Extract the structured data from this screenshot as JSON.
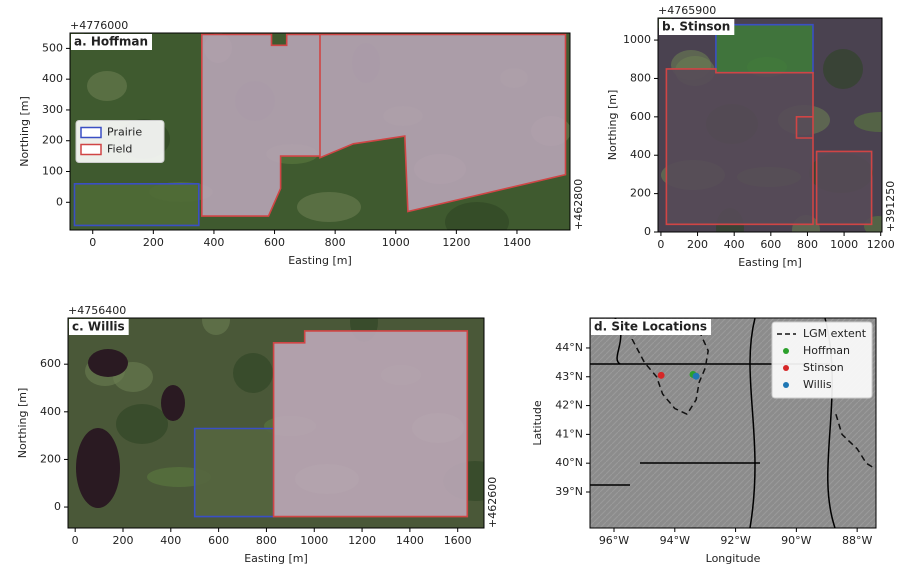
{
  "chart_data": [
    {
      "type": "map",
      "title": "a. Hoffman",
      "x_label": "Easting [m]",
      "y_label": "Northing [m]",
      "x_offset_label": "+462800",
      "y_offset_label": "+4776000",
      "xlim": [
        -75,
        1575
      ],
      "ylim": [
        -90,
        550
      ],
      "xticks": [
        0,
        200,
        400,
        600,
        800,
        1000,
        1200,
        1400
      ],
      "yticks": [
        0,
        100,
        200,
        300,
        400,
        500
      ],
      "legend": "center left",
      "series": [
        {
          "name": "Prairie",
          "color": "#3a4fc4",
          "fill": "#4f6a36",
          "x": [
            -60,
            350,
            350,
            -60
          ],
          "y": [
            -75,
            -75,
            60,
            60
          ]
        },
        {
          "name": "Field",
          "color": "#d04545",
          "fill": "#b7a4b6",
          "x": [
            360,
            590,
            590,
            640,
            640,
            750,
            750,
            620,
            620,
            580,
            360,
            null,
            750,
            1560,
            1560,
            1040,
            1030,
            860,
            750
          ],
          "y": [
            545,
            545,
            510,
            510,
            545,
            545,
            150,
            150,
            45,
            -45,
            -45,
            null,
            545,
            545,
            90,
            -30,
            215,
            190,
            145
          ]
        }
      ]
    },
    {
      "type": "map",
      "title": "b. Stinson",
      "x_label": "Easting [m]",
      "y_label": "Northing [m]",
      "x_offset_label": "+391250",
      "y_offset_label": "+4765900",
      "xlim": [
        -16,
        1207
      ],
      "ylim": [
        0,
        1115
      ],
      "xticks": [
        0,
        200,
        400,
        600,
        800,
        1000,
        1200
      ],
      "yticks": [
        0,
        200,
        400,
        600,
        800,
        1000
      ],
      "series": [
        {
          "color": "#3a4fc4",
          "fill": "#3f7a3a",
          "x": [
            300,
            830,
            830,
            300
          ],
          "y": [
            830,
            830,
            1080,
            1080
          ]
        },
        {
          "color": "#d04545",
          "fill": "#564b58",
          "x": [
            30,
            830,
            830,
            300,
            300,
            30,
            null,
            740,
            830,
            830,
            740,
            null,
            850,
            1150,
            1150,
            850
          ],
          "y": [
            40,
            40,
            830,
            830,
            850,
            850,
            null,
            490,
            490,
            600,
            600,
            null,
            40,
            40,
            420,
            420
          ]
        }
      ]
    },
    {
      "type": "map",
      "title": "c. Willis",
      "x_label": "Easting [m]",
      "y_label": "Northing [m]",
      "x_offset_label": "+462600",
      "y_offset_label": "+4756400",
      "xlim": [
        -30,
        1710
      ],
      "ylim": [
        -88,
        794
      ],
      "xticks": [
        0,
        200,
        400,
        600,
        800,
        1000,
        1200,
        1400,
        1600
      ],
      "yticks": [
        0,
        200,
        400,
        600
      ],
      "series": [
        {
          "color": "#3a4fc4",
          "fill": "#55663f",
          "x": [
            500,
            830,
            830,
            500
          ],
          "y": [
            -40,
            -40,
            330,
            330
          ]
        },
        {
          "color": "#d04545",
          "fill": "#bda8b8",
          "x": [
            830,
            1640,
            1640,
            960,
            960,
            830
          ],
          "y": [
            -40,
            -40,
            740,
            740,
            690,
            690
          ]
        }
      ]
    },
    {
      "type": "map",
      "title": "d. Site Locations",
      "x_label": "Longitude",
      "y_label": "Latitude",
      "xlim": [
        -96.79,
        -87.38
      ],
      "ylim": [
        37.75,
        45.04
      ],
      "legend": "upper right",
      "xticks": [
        {
          "value": -96,
          "label": "96°W"
        },
        {
          "value": -94,
          "label": "94°W"
        },
        {
          "value": -92,
          "label": "92°W"
        },
        {
          "value": -90,
          "label": "90°W"
        },
        {
          "value": -88,
          "label": "88°W"
        }
      ],
      "yticks": [
        {
          "value": 39,
          "label": "39°N"
        },
        {
          "value": 40,
          "label": "40°N"
        },
        {
          "value": 41,
          "label": "41°N"
        },
        {
          "value": 42,
          "label": "42°N"
        },
        {
          "value": 43,
          "label": "43°N"
        },
        {
          "value": 44,
          "label": "44°N"
        }
      ],
      "series": [
        {
          "name": "LGM extent",
          "color": "#111111",
          "linestyle": "--",
          "x": [
            -95.3,
            -95.4,
            -95.0,
            -94.6,
            -94.4,
            -94.0,
            -93.6,
            -93.3,
            -93.2,
            -93.0,
            -92.9,
            -93.2,
            -93.4,
            null,
            -88.7,
            -88.5,
            -88.0,
            -87.7,
            -87.4
          ],
          "y": [
            45.0,
            44.3,
            43.5,
            43.0,
            42.4,
            41.9,
            41.7,
            42.2,
            42.8,
            43.3,
            43.9,
            44.6,
            45.0,
            null,
            41.7,
            41.0,
            40.5,
            40.0,
            39.8
          ]
        },
        {
          "name": "Hoffman",
          "color": "#2ca02c",
          "marker": "o",
          "x": [
            -93.4
          ],
          "y": [
            43.08
          ]
        },
        {
          "name": "Stinson",
          "color": "#d62728",
          "marker": "o",
          "x": [
            -94.45
          ],
          "y": [
            43.05
          ]
        },
        {
          "name": "Willis",
          "color": "#1f77b4",
          "marker": "o",
          "x": [
            -93.3
          ],
          "y": [
            43.02
          ]
        }
      ]
    }
  ]
}
